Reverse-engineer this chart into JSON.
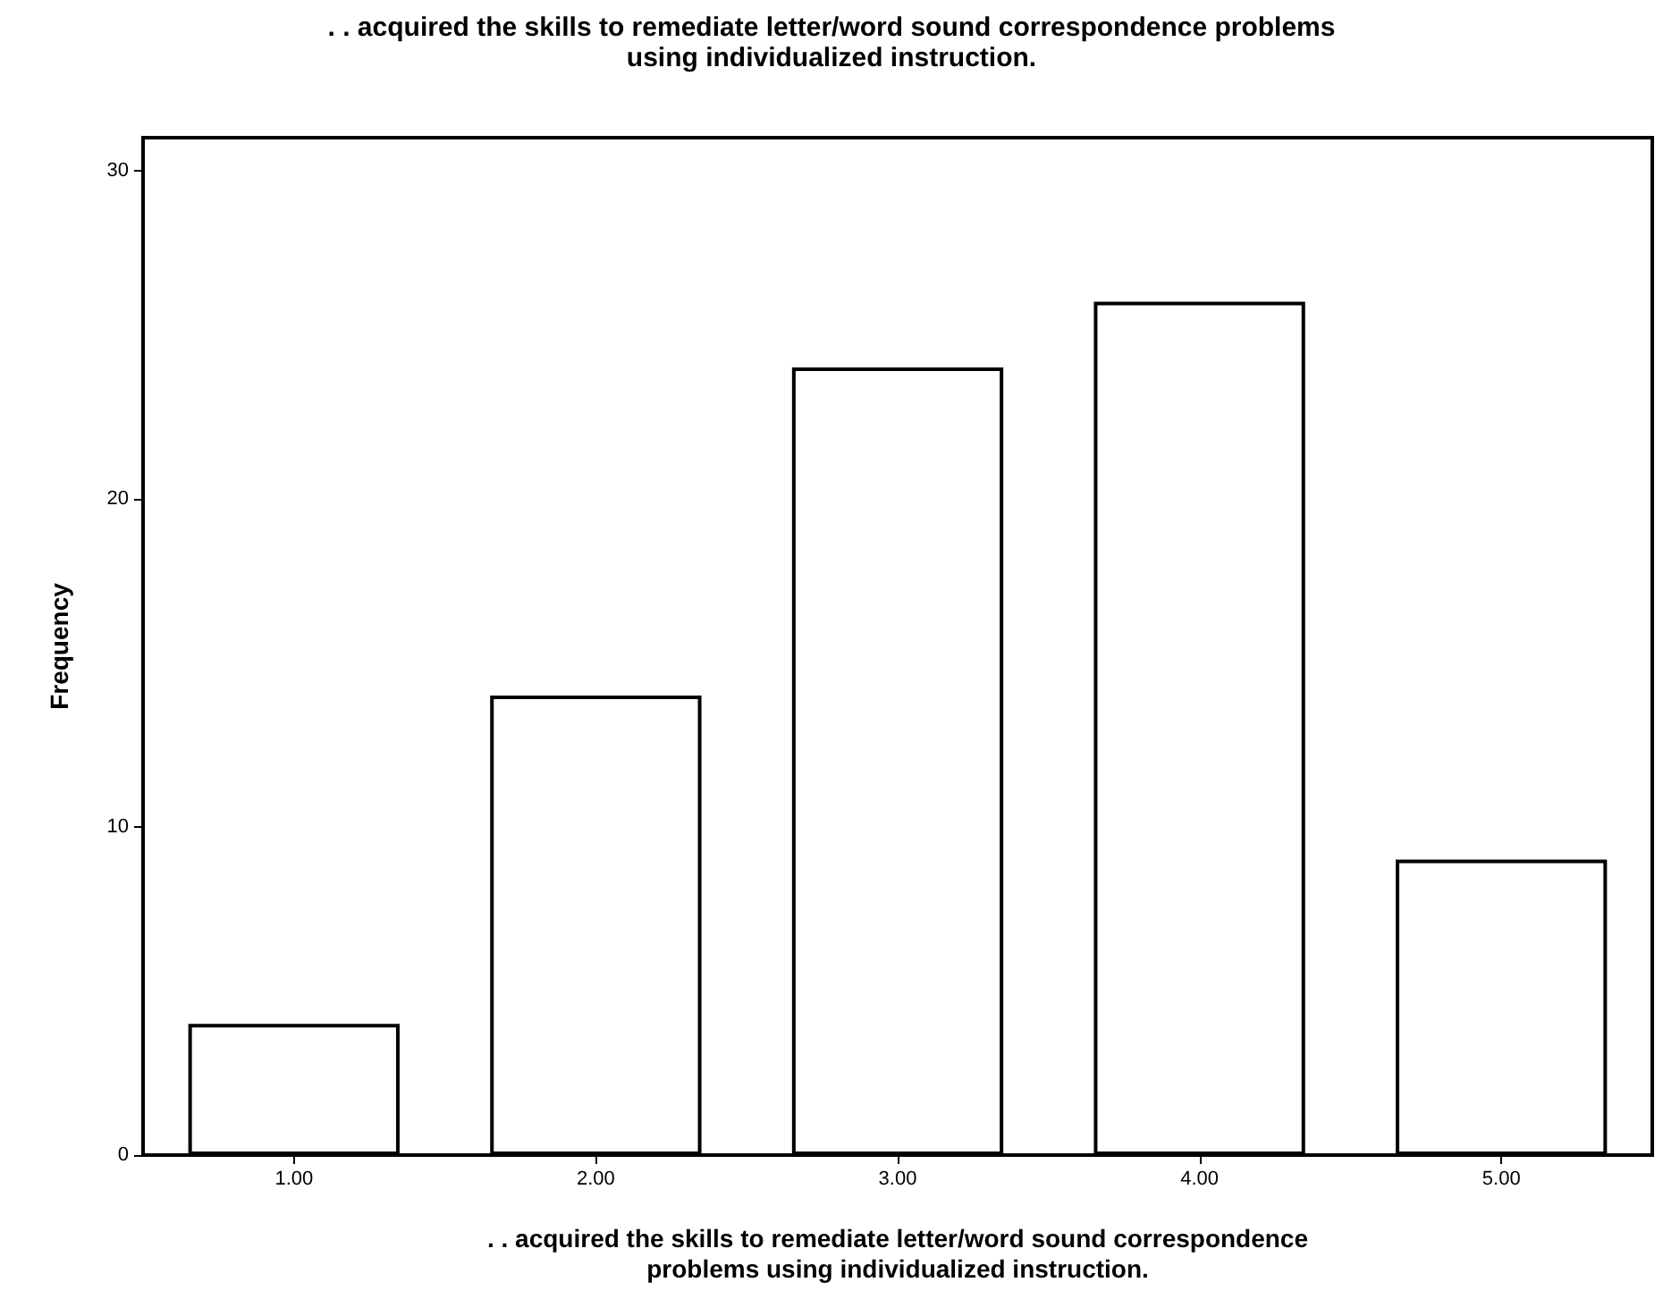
{
  "chart_data": {
    "type": "bar",
    "title": ". . acquired the skills to remediate letter/word sound correspondence problems\nusing individualized instruction.",
    "xlabel": ". . acquired the skills to remediate letter/word sound correspondence\nproblems using individualized instruction.",
    "ylabel": "Frequency",
    "categories": [
      "1.00",
      "2.00",
      "3.00",
      "4.00",
      "5.00"
    ],
    "values": [
      4,
      14,
      24,
      26,
      9
    ],
    "color": "#ffffff",
    "ylim": [
      0,
      31
    ],
    "yticks": [
      0,
      10,
      20,
      30
    ],
    "grid": false
  }
}
